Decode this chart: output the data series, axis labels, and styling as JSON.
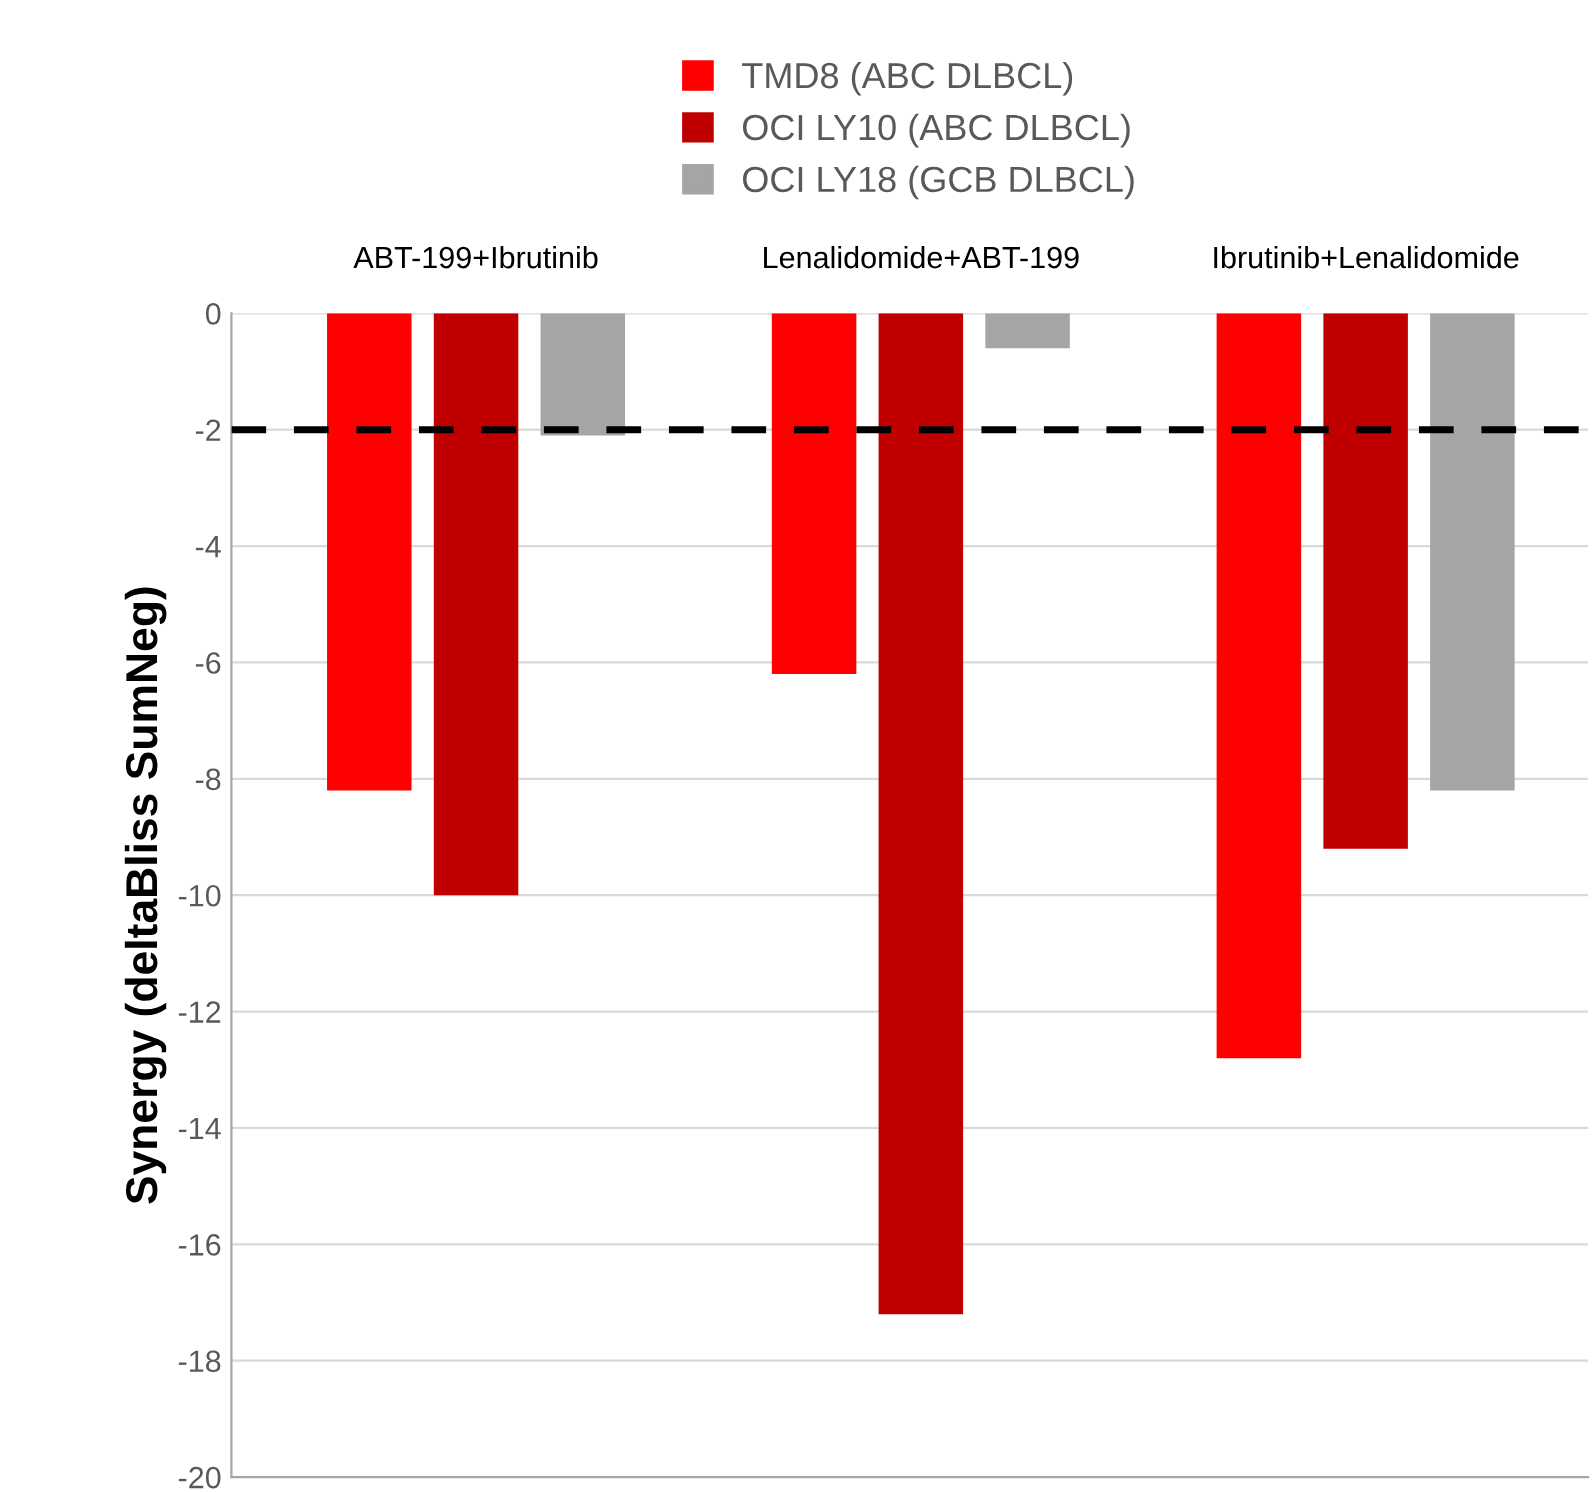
{
  "chart_data": {
    "type": "bar",
    "ylabel": "Synergy (deltaBliss SumNeg)",
    "categories": [
      "ABT-199+Ibrutinib",
      "Lenalidomide+ABT-199",
      "Ibrutinib+Lenalidomide"
    ],
    "series": [
      {
        "name": "TMD8 (ABC DLBCL)",
        "color": "#ff0000",
        "values": [
          -8.2,
          -6.2,
          -12.8
        ]
      },
      {
        "name": "OCI LY10 (ABC DLBCL)",
        "color": "#c00000",
        "values": [
          -10.0,
          -17.2,
          -9.2
        ]
      },
      {
        "name": "OCI LY18 (GCB DLBCL)",
        "color": "#a5a5a5",
        "values": [
          -2.1,
          -0.6,
          -8.2
        ]
      }
    ],
    "ylim": [
      -20,
      0
    ],
    "yticks": [
      -20,
      -18,
      -16,
      -14,
      -12,
      -10,
      -8,
      -6,
      -4,
      -2,
      0
    ],
    "ref_lines": [
      {
        "axis": "y",
        "value": -2,
        "color": "#000000",
        "line_style": "dashed"
      }
    ],
    "grid": "y",
    "legend": "top"
  }
}
